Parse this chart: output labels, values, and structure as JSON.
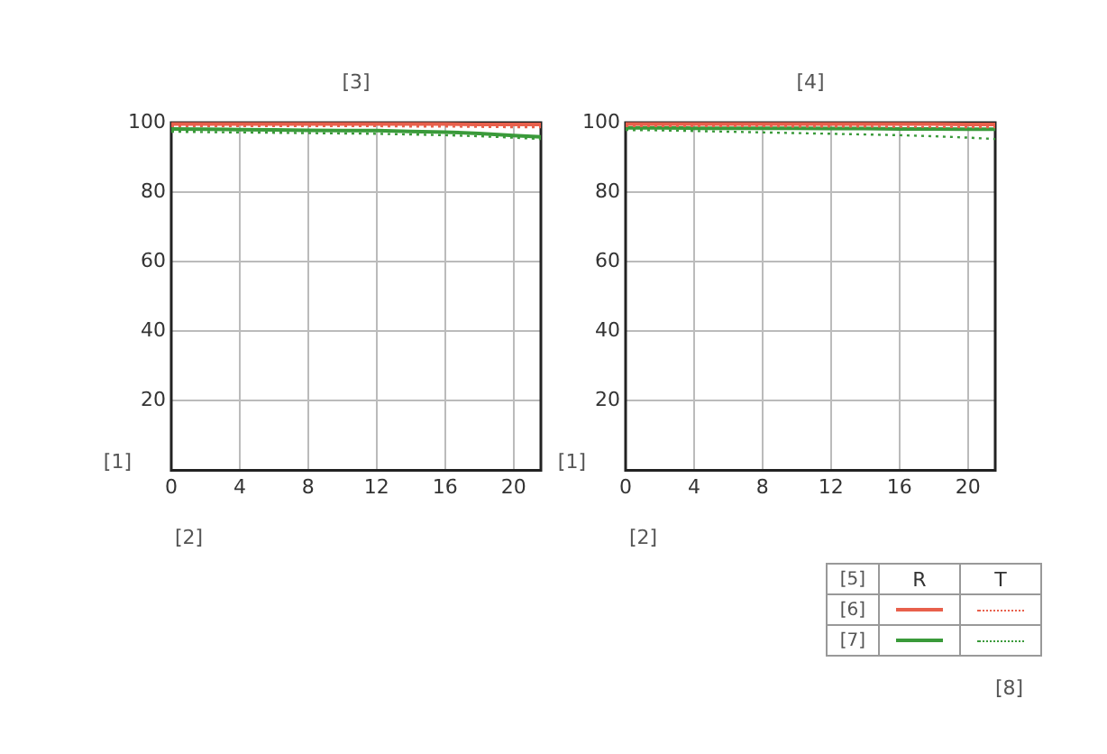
{
  "chart_data": [
    {
      "type": "line",
      "title": "[3]",
      "xlabel": "[2]",
      "ylabel": "[1]",
      "x": [
        0,
        2,
        4,
        6,
        8,
        10,
        12,
        14,
        16,
        18,
        20,
        21.6
      ],
      "xlim": [
        0,
        21.6
      ],
      "xticks": [
        0,
        4,
        8,
        12,
        16,
        20
      ],
      "ylim": [
        0,
        100
      ],
      "yticks": [
        20,
        40,
        60,
        80,
        100
      ],
      "grid": true,
      "legend": false,
      "marker": "none",
      "series": [
        {
          "color": "#e8604c",
          "line_style": "solid",
          "values": [
            99.6,
            99.6,
            99.6,
            99.6,
            99.6,
            99.6,
            99.6,
            99.6,
            99.6,
            99.5,
            99.5,
            99.5
          ]
        },
        {
          "color": "#e8604c",
          "line_style": "dotted",
          "values": [
            99,
            99,
            99,
            99,
            99,
            99,
            99,
            98.9,
            98.9,
            98.8,
            98.7,
            98.7
          ]
        },
        {
          "color": "#3a9a3a",
          "line_style": "solid",
          "values": [
            98.2,
            98.1,
            98,
            97.9,
            97.8,
            97.7,
            97.7,
            97.5,
            97.3,
            96.9,
            96.3,
            95.9
          ]
        },
        {
          "color": "#3a9a3a",
          "line_style": "dotted",
          "values": [
            97.4,
            97.3,
            97.2,
            97.1,
            97,
            96.9,
            96.8,
            96.6,
            96.4,
            96.1,
            95.7,
            95.3
          ]
        }
      ]
    },
    {
      "type": "line",
      "title": "[4]",
      "xlabel": "[2]",
      "ylabel": "[1]",
      "x": [
        0,
        2,
        4,
        6,
        8,
        10,
        12,
        14,
        16,
        18,
        20,
        21.6
      ],
      "xlim": [
        0,
        21.6
      ],
      "xticks": [
        0,
        4,
        8,
        12,
        16,
        20
      ],
      "ylim": [
        0,
        100
      ],
      "yticks": [
        20,
        40,
        60,
        80,
        100
      ],
      "grid": true,
      "legend": false,
      "marker": "none",
      "annotations": [
        "[5]",
        "R",
        "T",
        "[6]",
        "[7]",
        "[8]"
      ],
      "series": [
        {
          "color": "#e8604c",
          "line_style": "solid",
          "values": [
            99.6,
            99.6,
            99.6,
            99.6,
            99.6,
            99.6,
            99.6,
            99.6,
            99.6,
            99.6,
            99.5,
            99.5
          ]
        },
        {
          "color": "#e8604c",
          "line_style": "dotted",
          "values": [
            99,
            99,
            99,
            99,
            99,
            98.9,
            98.9,
            98.9,
            98.8,
            98.8,
            98.7,
            98.7
          ]
        },
        {
          "color": "#3a9a3a",
          "line_style": "solid",
          "values": [
            98.5,
            98.5,
            98.4,
            98.4,
            98.4,
            98.4,
            98.3,
            98.3,
            98.2,
            98.2,
            98.1,
            98.1
          ]
        },
        {
          "color": "#3a9a3a",
          "line_style": "dotted",
          "values": [
            97.9,
            97.8,
            97.6,
            97.4,
            97.2,
            97,
            96.8,
            96.6,
            96.4,
            96.1,
            95.7,
            95.3
          ]
        }
      ]
    }
  ]
}
